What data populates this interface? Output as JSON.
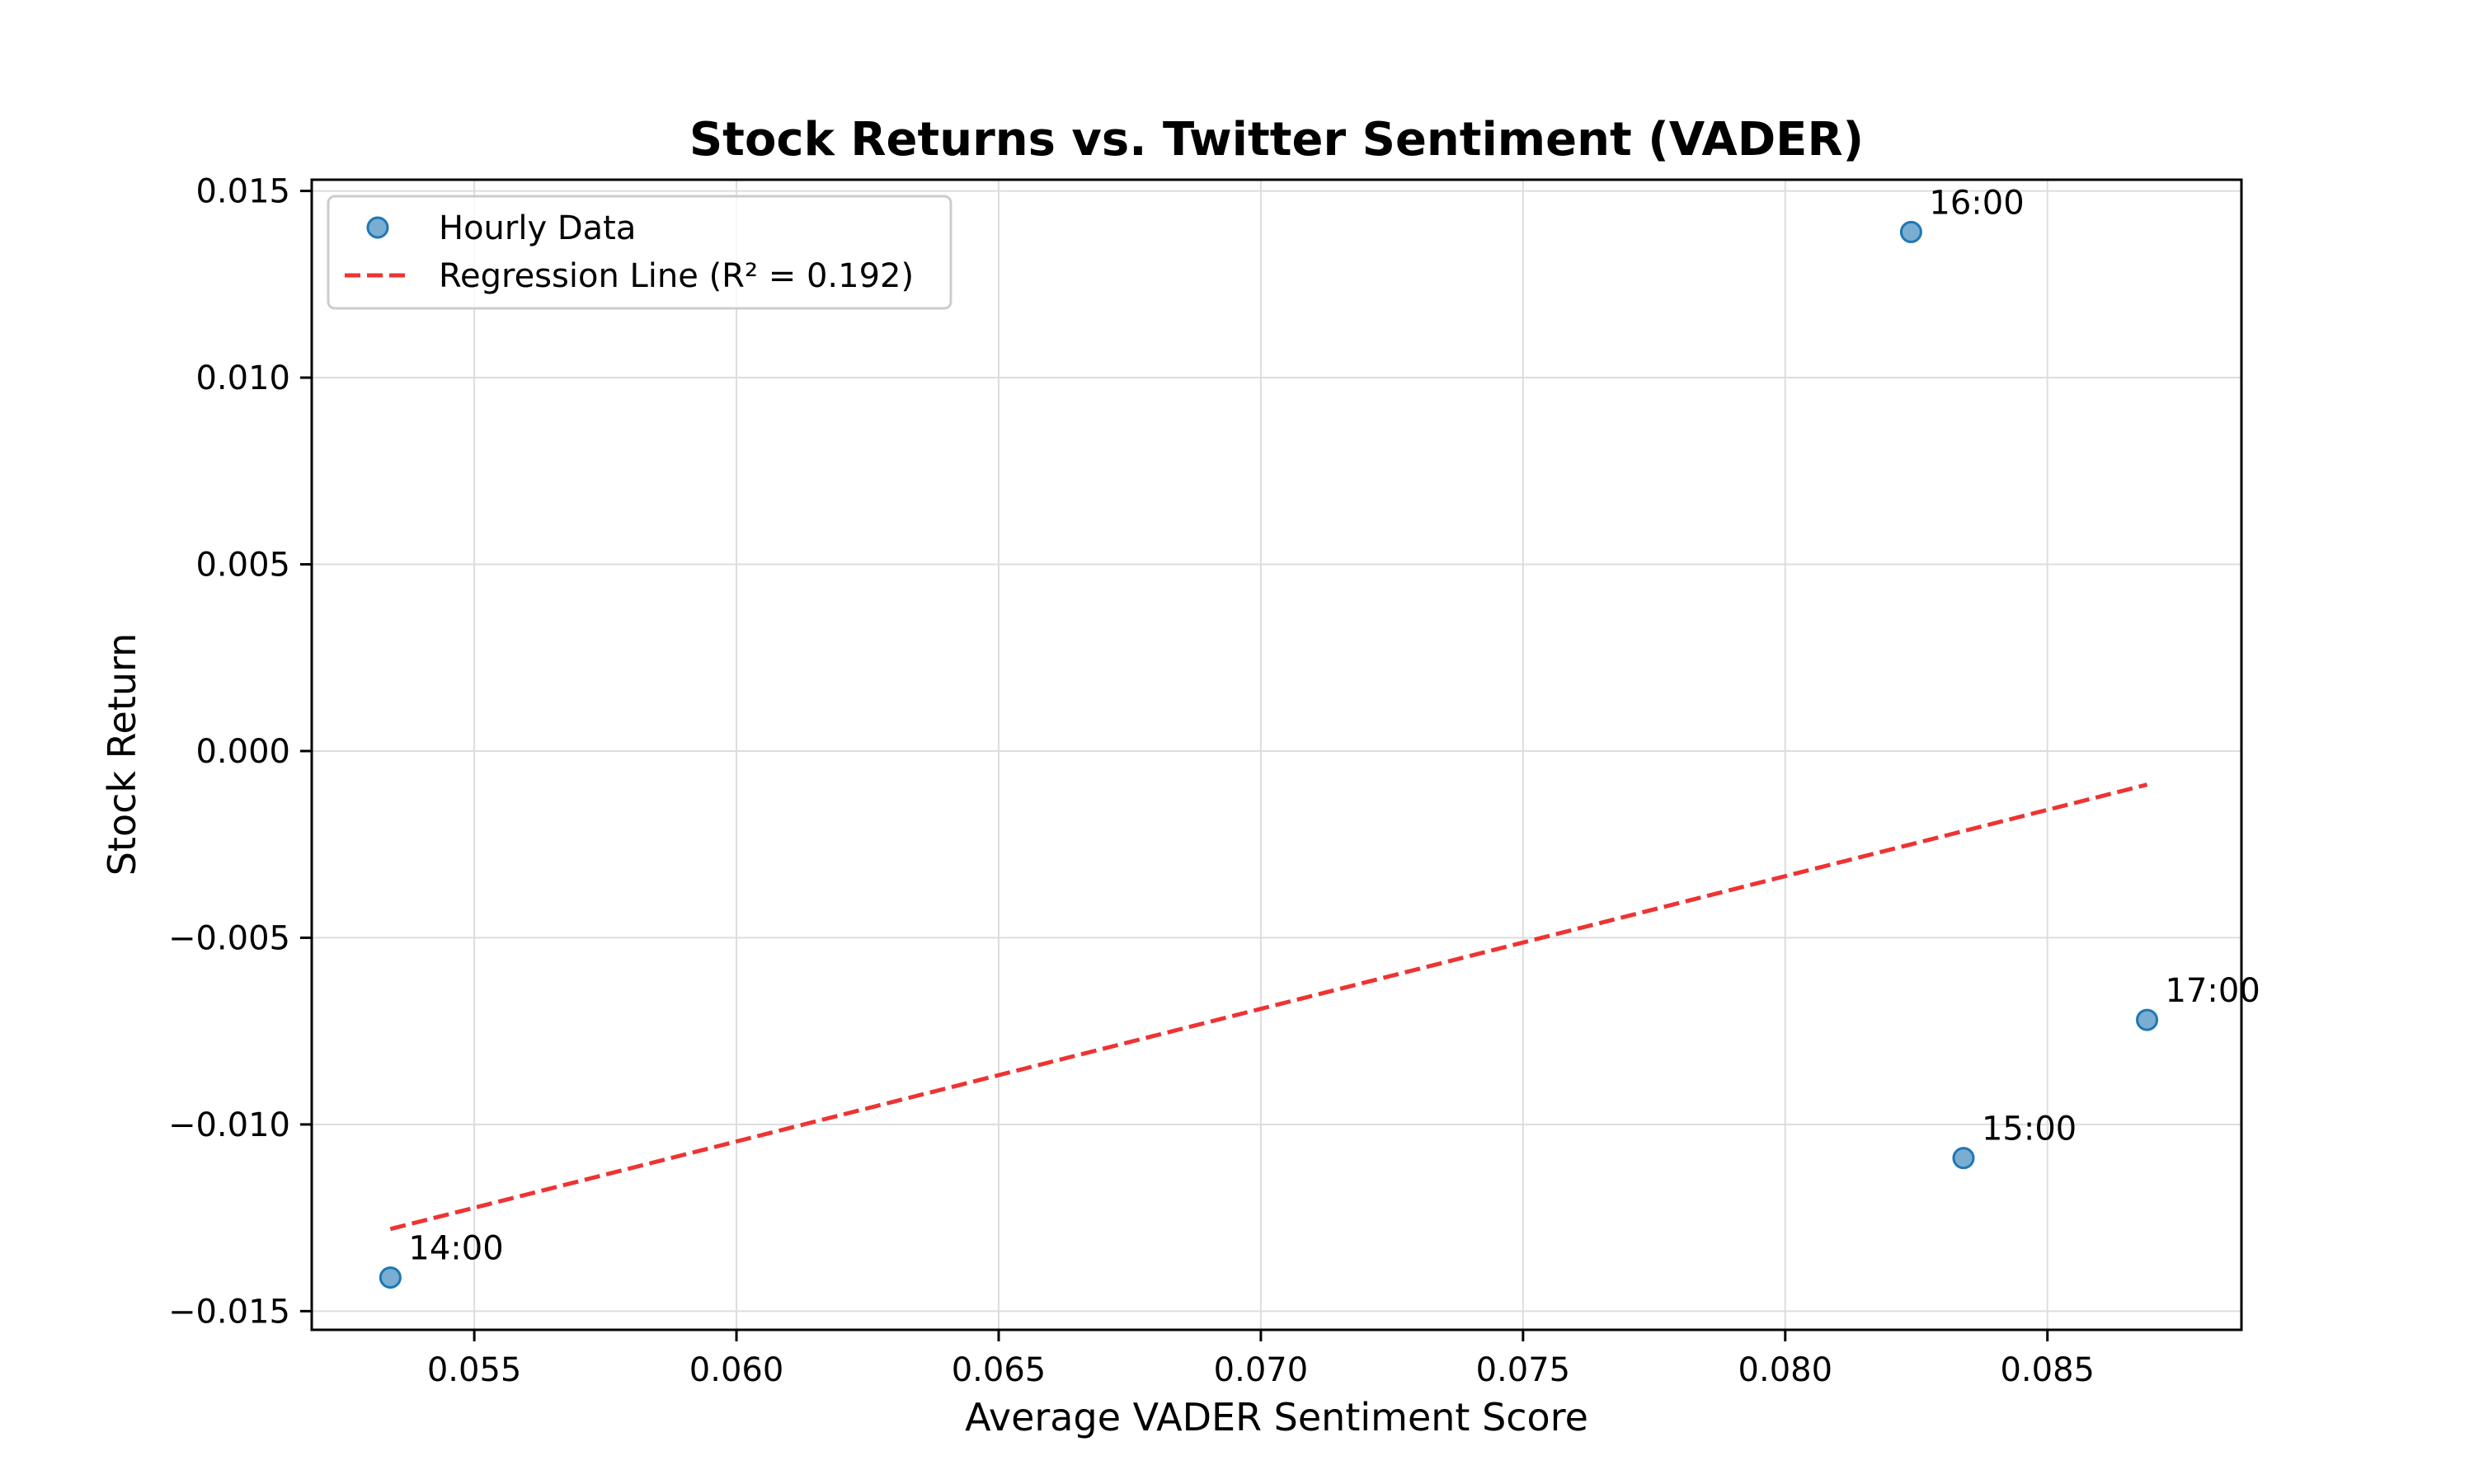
{
  "chart_data": {
    "type": "scatter",
    "title": "Stock Returns vs. Twitter Sentiment (VADER)",
    "xlabel": "Average VADER Sentiment Score",
    "ylabel": "Stock Return",
    "xlim": [
      0.0519,
      0.0887
    ],
    "ylim": [
      -0.0155,
      0.0153
    ],
    "xticks": [
      0.055,
      0.06,
      0.065,
      0.07,
      0.075,
      0.08,
      0.085
    ],
    "xtick_labels": [
      "0.055",
      "0.060",
      "0.065",
      "0.070",
      "0.075",
      "0.080",
      "0.085"
    ],
    "yticks": [
      0.015,
      0.01,
      0.005,
      0.0,
      -0.005,
      -0.01,
      -0.015
    ],
    "ytick_labels": [
      "0.015",
      "0.010",
      "0.005",
      "0.000",
      "−0.005",
      "−0.010",
      "−0.015"
    ],
    "grid": true,
    "legend_position": "top-left",
    "series": [
      {
        "name": "Hourly Data",
        "kind": "scatter",
        "color": "#1f77b4",
        "points": [
          {
            "x": 0.0534,
            "y": -0.0141,
            "label": "14:00"
          },
          {
            "x": 0.0834,
            "y": -0.0109,
            "label": "15:00"
          },
          {
            "x": 0.0824,
            "y": 0.0139,
            "label": "16:00"
          },
          {
            "x": 0.0869,
            "y": -0.0072,
            "label": "17:00"
          }
        ]
      },
      {
        "name": "Regression Line (R² = 0.192)",
        "kind": "line",
        "style": "dashed",
        "color": "#ee3333",
        "points": [
          {
            "x": 0.0534,
            "y": -0.0128
          },
          {
            "x": 0.0869,
            "y": -0.0009
          }
        ]
      }
    ]
  }
}
